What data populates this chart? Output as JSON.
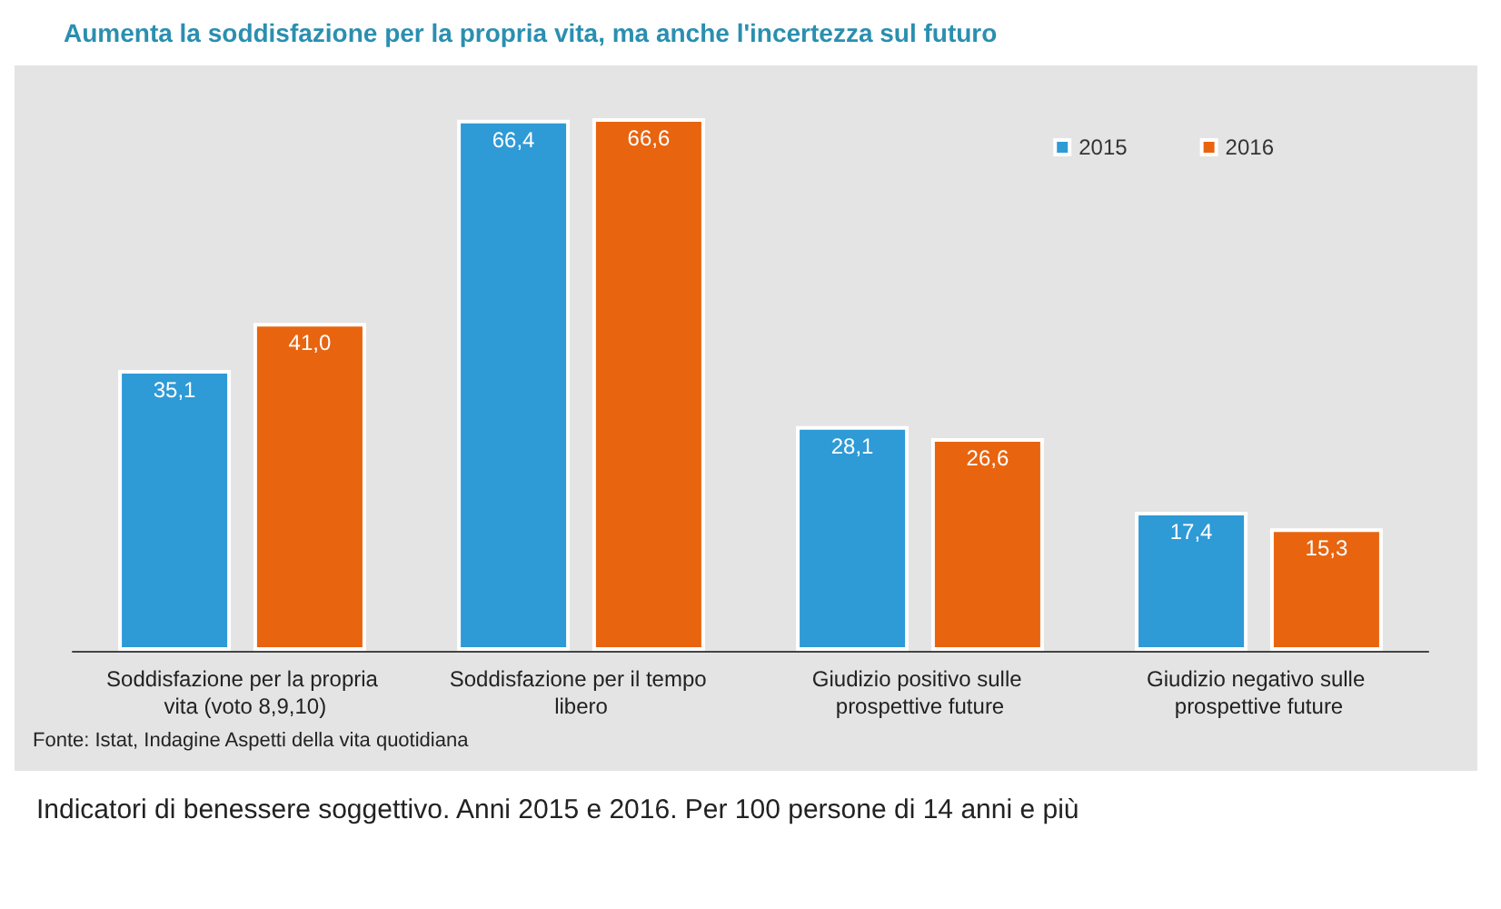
{
  "chart_data": {
    "type": "bar",
    "title": "Aumenta la soddisfazione per la propria vita, ma anche l'incertezza sul futuro",
    "categories": [
      "Soddisfazione per la propria vita (voto 8,9,10)",
      "Soddisfazione per il tempo libero",
      "Giudizio positivo sulle prospettive future",
      "Giudizio negativo sulle prospettive future"
    ],
    "series": [
      {
        "name": "2015",
        "color": "#2e9ad6",
        "values": [
          35.1,
          66.4,
          28.1,
          17.4
        ],
        "value_labels": [
          "35,1",
          "66,4",
          "28,1",
          "17,4"
        ]
      },
      {
        "name": "2016",
        "color": "#e8640f",
        "values": [
          41.0,
          66.6,
          26.6,
          15.3
        ],
        "value_labels": [
          "41,0",
          "66,6",
          "26,6",
          "15,3"
        ]
      }
    ],
    "legend": "top right",
    "annotations": [
      "Fonte: Istat, Indagine Aspetti della vita quotidiana",
      "Indicatori di benessere soggettivo. Anni 2015 e 2016. Per 100 persone di 14 anni e più"
    ]
  }
}
